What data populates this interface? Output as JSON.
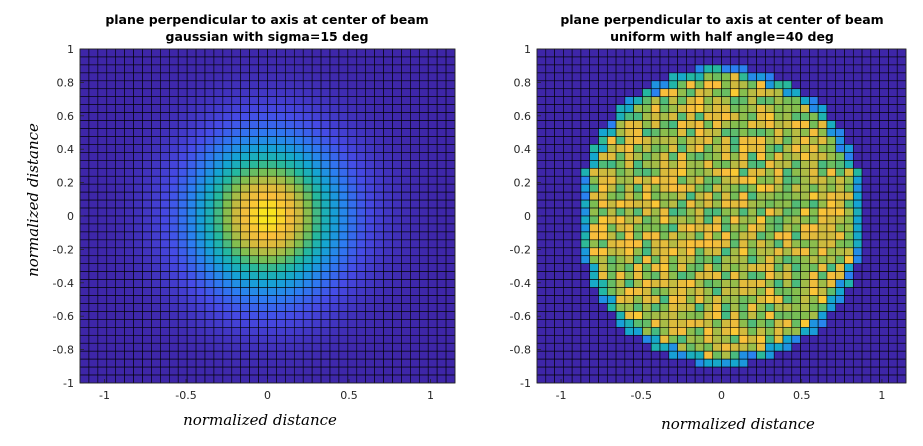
{
  "chart_data": [
    {
      "type": "heatmap",
      "title": "plane perpendicular to axis at center of beam",
      "subtitle": "gaussian with sigma=15 deg",
      "xlabel": "normalized distance",
      "ylabel": "normalized distance",
      "xlim": [
        -1.15,
        1.15
      ],
      "ylim": [
        -1,
        1
      ],
      "xticks": [
        -1,
        -0.5,
        0,
        0.5,
        1
      ],
      "xtick_labels": [
        "-1",
        "-0.5",
        "0",
        "0.5",
        "1"
      ],
      "yticks": [
        1,
        0.8,
        0.6,
        0.4,
        0.2,
        0,
        -0.2,
        -0.4,
        -0.6,
        -0.8,
        -1
      ],
      "ytick_labels": [
        "1",
        "0.8",
        "0.6",
        "0.4",
        "0.2",
        "0",
        "-0.2",
        "-0.4",
        "-0.6",
        "-0.8",
        "-1"
      ],
      "distribution": "gaussian",
      "sigma": 0.32,
      "grid_cells": 42,
      "colormap": "parula",
      "colors": {
        "low": "#3e26a8",
        "mid": "#1fb3b3",
        "high": "#f9fb0e",
        "cell_edge": "#000000"
      }
    },
    {
      "type": "heatmap",
      "title": "plane perpendicular to axis at center of beam",
      "subtitle": "uniform with half angle=40 deg",
      "xlabel": "normalized distance",
      "ylabel": "",
      "xlim": [
        -1.15,
        1.15
      ],
      "ylim": [
        -1,
        1
      ],
      "xticks": [
        -1,
        -0.5,
        0,
        0.5,
        1
      ],
      "xtick_labels": [
        "-1",
        "-0.5",
        "0",
        "0.5",
        "1"
      ],
      "yticks": [
        1,
        0.8,
        0.6,
        0.4,
        0.2,
        0,
        -0.2,
        -0.4,
        -0.6,
        -0.8,
        -1
      ],
      "ytick_labels": [
        "1",
        "0.8",
        "0.6",
        "0.4",
        "0.2",
        "0",
        "-0.2",
        "-0.4",
        "-0.6",
        "-0.8",
        "-1"
      ],
      "distribution": "uniform",
      "radius": 0.84,
      "grid_cells": 42,
      "colormap": "parula",
      "colors": {
        "low": "#3e26a8",
        "mid": "#1fb3b3",
        "high": "#f9fb0e",
        "cell_edge": "#000000"
      }
    }
  ]
}
